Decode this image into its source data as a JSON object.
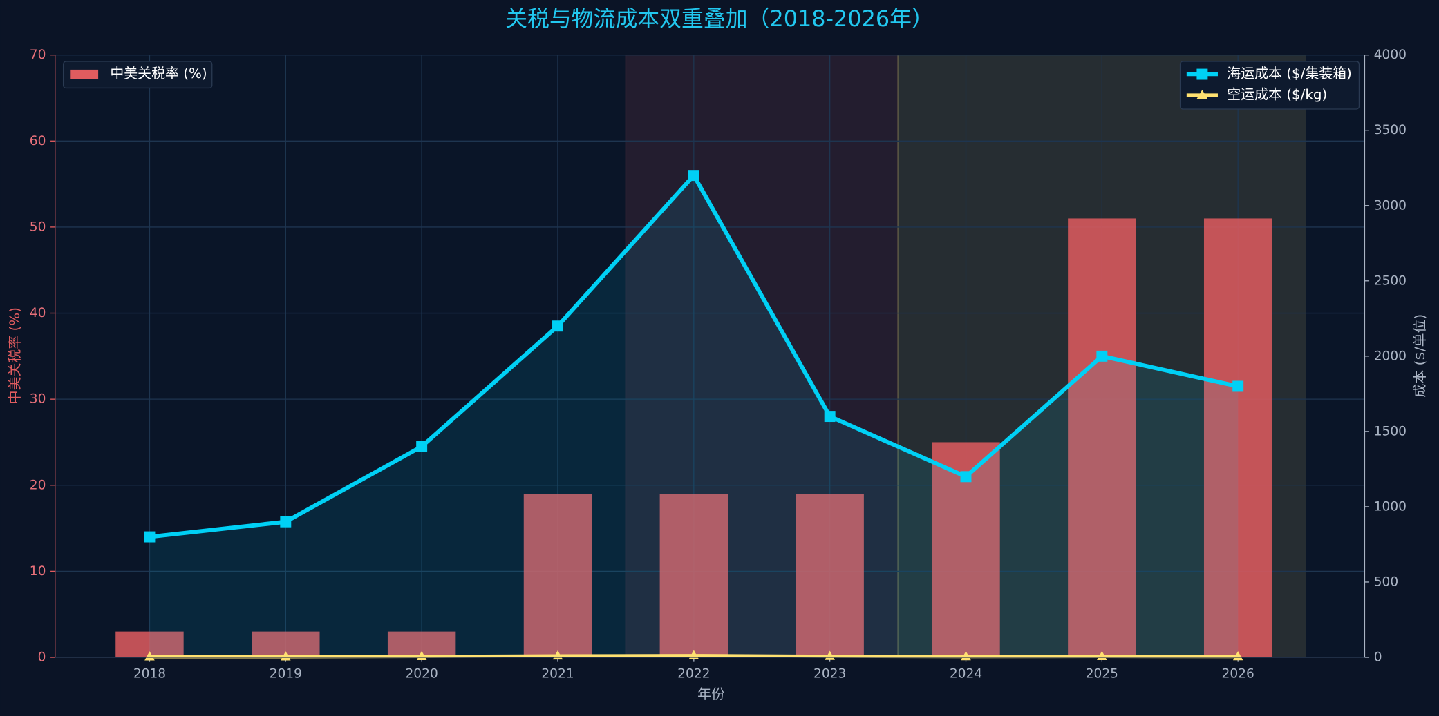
{
  "chart_data": {
    "type": "combo",
    "title": "关税与物流成本双重叠加（2018-2026年）",
    "xlabel": "年份",
    "ylabel": "中美关税率 (%)",
    "y2label": "成本 ($/单位)",
    "categories": [
      "2018",
      "2019",
      "2020",
      "2021",
      "2022",
      "2023",
      "2024",
      "2025",
      "2026"
    ],
    "series": [
      {
        "name": "中美关税率 (%)",
        "type": "bar",
        "axis": "y",
        "color": "#e05c5f",
        "values": [
          3,
          3,
          3,
          19,
          19,
          19,
          25,
          51,
          51
        ]
      },
      {
        "name": "海运成本 ($/集装箱)",
        "type": "line",
        "marker": "square",
        "axis": "y2",
        "color": "#00d0f5",
        "values": [
          800,
          900,
          1400,
          2200,
          3200,
          1600,
          1200,
          2000,
          1800
        ]
      },
      {
        "name": "空运成本 ($/kg)",
        "type": "line",
        "marker": "triangle",
        "axis": "y2",
        "color": "#ffe170",
        "values": [
          4,
          4,
          6,
          10,
          12,
          7,
          5,
          6,
          5
        ]
      }
    ],
    "ylim": [
      0,
      70
    ],
    "yticks": [
      0,
      10,
      20,
      30,
      40,
      50,
      60,
      70
    ],
    "y2lim": [
      0,
      4000
    ],
    "y2ticks": [
      0,
      500,
      1000,
      1500,
      2000,
      2500,
      3000,
      3500,
      4000
    ],
    "grid": true
  }
}
